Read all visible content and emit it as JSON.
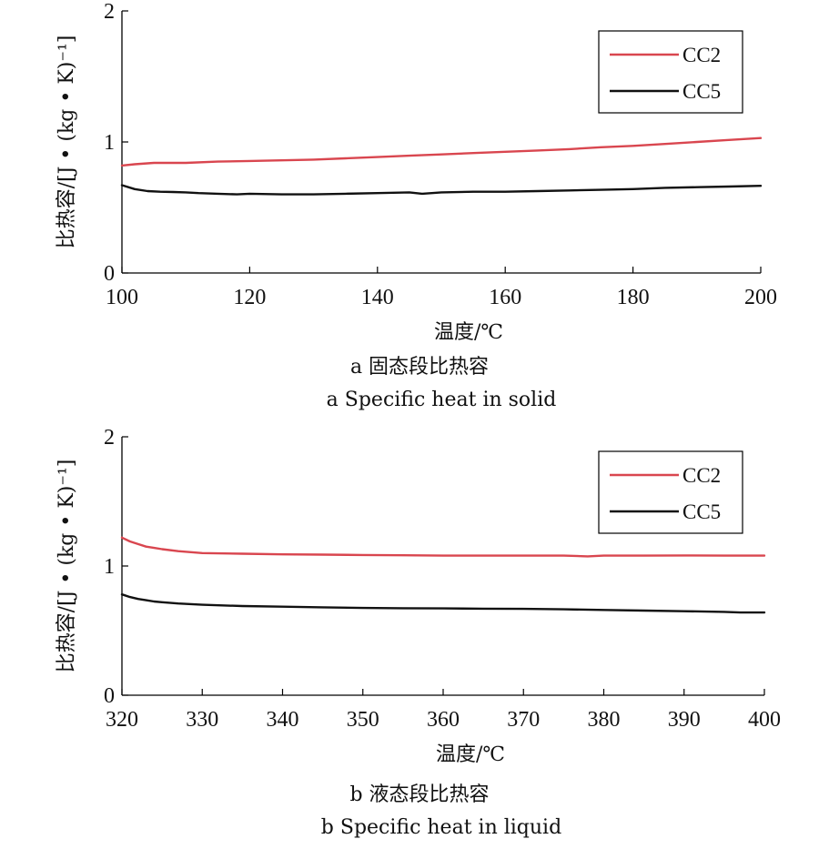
{
  "chart_data": [
    {
      "type": "line",
      "xlabel": "温度/℃",
      "ylabel": "比热容/[J • (kg • K)⁻¹]",
      "xlim": [
        100,
        200
      ],
      "ylim": [
        0,
        2
      ],
      "xticks": [
        "100",
        "120",
        "140",
        "160",
        "180",
        "200"
      ],
      "yticks": [
        "0",
        "1",
        "2"
      ],
      "legend_position": "top-right",
      "caption_cn": "a  固态段比热容",
      "caption_en": "a  Specific heat in solid",
      "series": [
        {
          "name": "CC2",
          "color": "#d9464f",
          "x": [
            100,
            102,
            105,
            108,
            110,
            115,
            120,
            125,
            130,
            135,
            140,
            145,
            150,
            155,
            160,
            165,
            170,
            175,
            180,
            185,
            190,
            195,
            200
          ],
          "y": [
            0.82,
            0.83,
            0.84,
            0.84,
            0.84,
            0.85,
            0.855,
            0.86,
            0.865,
            0.875,
            0.885,
            0.895,
            0.905,
            0.915,
            0.925,
            0.935,
            0.945,
            0.96,
            0.97,
            0.985,
            1.0,
            1.015,
            1.03
          ]
        },
        {
          "name": "CC5",
          "color": "#111111",
          "x": [
            100,
            102,
            104,
            106,
            108,
            110,
            112,
            115,
            118,
            120,
            125,
            130,
            135,
            140,
            145,
            147,
            150,
            155,
            160,
            165,
            170,
            175,
            180,
            185,
            190,
            195,
            200
          ],
          "y": [
            0.67,
            0.64,
            0.625,
            0.62,
            0.618,
            0.615,
            0.61,
            0.605,
            0.6,
            0.605,
            0.6,
            0.6,
            0.605,
            0.61,
            0.615,
            0.605,
            0.615,
            0.62,
            0.62,
            0.625,
            0.63,
            0.635,
            0.64,
            0.65,
            0.655,
            0.66,
            0.665
          ]
        }
      ]
    },
    {
      "type": "line",
      "xlabel": "温度/℃",
      "ylabel": "比热容/[J • (kg • K)⁻¹]",
      "xlim": [
        320,
        400
      ],
      "ylim": [
        0,
        2
      ],
      "xticks": [
        "320",
        "330",
        "340",
        "350",
        "360",
        "370",
        "380",
        "390",
        "400"
      ],
      "yticks": [
        "0",
        "1",
        "2"
      ],
      "legend_position": "top-right",
      "caption_cn": "b  液态段比热容",
      "caption_en": "b  Specific heat in liquid",
      "series": [
        {
          "name": "CC2",
          "color": "#d9464f",
          "x": [
            320,
            321,
            322,
            323,
            324,
            325,
            327,
            330,
            335,
            340,
            345,
            350,
            355,
            360,
            365,
            370,
            375,
            378,
            380,
            385,
            390,
            395,
            400
          ],
          "y": [
            1.22,
            1.19,
            1.17,
            1.15,
            1.14,
            1.13,
            1.115,
            1.1,
            1.095,
            1.09,
            1.088,
            1.085,
            1.083,
            1.08,
            1.08,
            1.08,
            1.08,
            1.075,
            1.08,
            1.08,
            1.082,
            1.08,
            1.08
          ]
        },
        {
          "name": "CC5",
          "color": "#111111",
          "x": [
            320,
            321,
            322,
            323,
            324,
            325,
            327,
            330,
            335,
            340,
            345,
            350,
            355,
            360,
            365,
            370,
            375,
            380,
            385,
            390,
            395,
            397,
            400
          ],
          "y": [
            0.78,
            0.76,
            0.745,
            0.735,
            0.725,
            0.72,
            0.71,
            0.7,
            0.69,
            0.685,
            0.68,
            0.675,
            0.673,
            0.672,
            0.67,
            0.668,
            0.665,
            0.66,
            0.655,
            0.65,
            0.645,
            0.64,
            0.64
          ]
        }
      ]
    }
  ]
}
